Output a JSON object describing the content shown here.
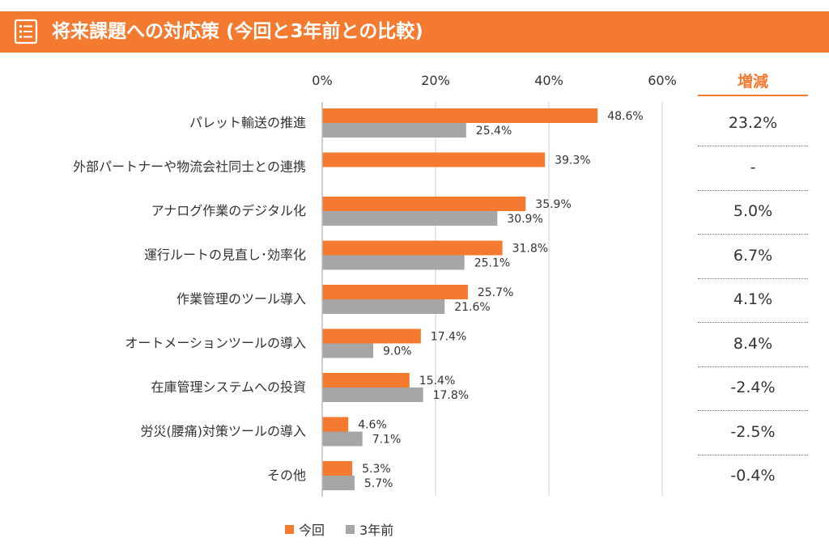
{
  "header": {
    "title": "将来課題への対応策 (今回と3年前との比較)",
    "icon": "list-document-icon"
  },
  "colors": {
    "header_bg": "#f47a2f",
    "current": "#f47a2f",
    "previous": "#a6a6a6",
    "text": "#333333"
  },
  "diff_table": {
    "header": "増減",
    "values": [
      "23.2%",
      "-",
      "5.0%",
      "6.7%",
      "4.1%",
      "8.4%",
      "-2.4%",
      "-2.5%",
      "-0.4%"
    ]
  },
  "chart_data": {
    "type": "bar",
    "orientation": "horizontal",
    "categories": [
      "パレット輸送の推進",
      "外部パートナーや物流会社同士との連携",
      "アナログ作業のデジタル化",
      "運行ルートの見直し･効率化",
      "作業管理のツール導入",
      "オートメーションツールの導入",
      "在庫管理システムへの投資",
      "労災(腰痛)対策ツールの導入",
      "その他"
    ],
    "series": [
      {
        "name": "今回",
        "values": [
          48.6,
          39.3,
          35.9,
          31.8,
          25.7,
          17.4,
          15.4,
          4.6,
          5.3
        ],
        "labels": [
          "48.6%",
          "39.3%",
          "35.9%",
          "31.8%",
          "25.7%",
          "17.4%",
          "15.4%",
          "4.6%",
          "5.3%"
        ]
      },
      {
        "name": "3年前",
        "values": [
          25.4,
          null,
          30.9,
          25.1,
          21.6,
          9.0,
          17.8,
          7.1,
          5.7
        ],
        "labels": [
          "25.4%",
          "",
          "30.9%",
          "25.1%",
          "21.6%",
          "9.0%",
          "17.8%",
          "7.1%",
          "5.7%"
        ]
      }
    ],
    "xlim": [
      0,
      60
    ],
    "xticks": [
      0,
      20,
      40,
      60
    ],
    "xtick_labels": [
      "0%",
      "20%",
      "40%",
      "60%"
    ],
    "grid": true,
    "legend_position": "bottom"
  }
}
